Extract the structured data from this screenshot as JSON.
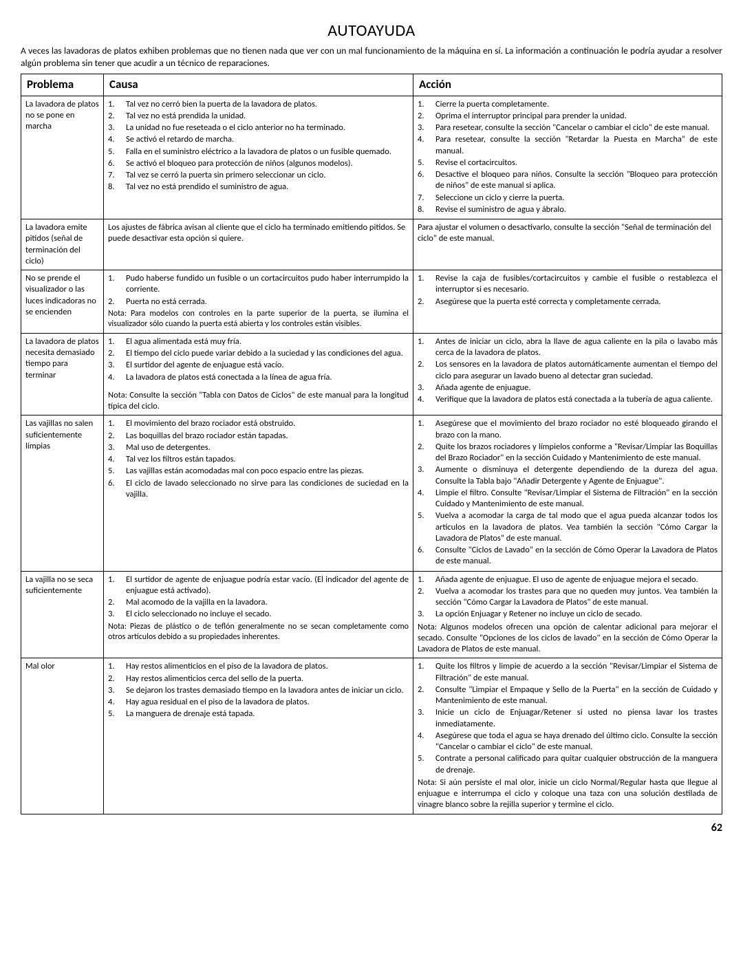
{
  "page_title": "AUTOAYUDA",
  "intro": "A veces las lavadoras de platos exhiben problemas que no tienen nada que ver con un mal funcionamiento de la máquina en sí.  La información a continuación le podría ayudar a resolver algún problema sin tener que acudir a un técnico de reparaciones.",
  "headers": {
    "problema": "Problema",
    "causa": "Causa",
    "accion": "Acción"
  },
  "rows": [
    {
      "problema": "La lavadora de platos no se pone en marcha",
      "causa_items": [
        "Tal vez no cerró bien la puerta de la lavadora de platos.",
        "Tal vez no está prendida la unidad.",
        "La unidad no fue reseteada o el ciclo anterior no ha terminado.",
        "Se activó el retardo de marcha.",
        "Falla en el suministro eléctrico a la lavadora de platos o un fusible quemado.",
        "Se activó el bloqueo para protección de niños (algunos modelos).",
        "Tal vez se cerró la puerta sin primero seleccionar un ciclo.",
        "Tal vez no está prendido el suministro de agua."
      ],
      "accion_items": [
        "Cierre la puerta completamente.",
        "Oprima el interruptor principal para prender la unidad.",
        "Para resetear, consulte la sección \"Cancelar o cambiar el ciclo\" de este manual.",
        "Para resetear, consulte la sección \"Retardar la Puesta en Marcha\" de este manual.",
        "Revise el cortacircuitos.",
        "Desactive el bloqueo para niños. Consulte la sección \"Bloqueo para protección de niños\" de este manual si aplica.",
        "Seleccione un ciclo y cierre la puerta.",
        "Revise el suministro de agua y ábralo."
      ]
    },
    {
      "problema": "La lavadora emite pitidos (señal de terminación del ciclo)",
      "causa_text": "Los ajustes de fábrica avisan al cliente que el ciclo ha terminado emitiendo pitidos. Se puede desactivar esta opción si quiere.",
      "accion_text": "Para ajustar el volumen o desactivarlo, consulte la sección \"Señal de terminación del ciclo\" de este manual."
    },
    {
      "problema": "No se prende el visualizador o las luces indicadoras no se encienden",
      "causa_items": [
        "Pudo haberse fundido un fusible o un cortacircuitos pudo haber interrumpido la corriente.",
        "Puerta no está cerrada."
      ],
      "causa_note": "Nota: Para modelos con controles en la parte superior de la puerta, se ilumina el visualizador sólo cuando la puerta está abierta y los controles están visibles.",
      "accion_items": [
        "Revise la caja de fusibles/cortacircuitos y cambie el fusible o restablezca el interruptor si es necesario.",
        "Asegúrese que la puerta esté correcta y completamente cerrada."
      ]
    },
    {
      "problema": "La lavadora de platos necesita demasiado tiempo para terminar",
      "causa_items": [
        "El agua alimentada está muy fría.",
        "El tiempo del ciclo puede variar debido a la suciedad y las condiciones del agua.",
        "El surtidor del agente de enjuague está vacío.",
        "La lavadora de platos está conectada a la línea de agua fría."
      ],
      "causa_note2": "Nota: Consulte la sección \"Tabla con Datos de Ciclos\" de este manual para la longitud típica del ciclo.",
      "accion_items": [
        "Antes de iniciar un ciclo, abra la llave de agua caliente en la pila o lavabo más cerca de la lavadora de platos.",
        "Los sensores en la lavadora de platos automáticamente aumentan el tiempo del ciclo para asegurar un lavado bueno al detectar gran suciedad.",
        "Añada agente de enjuague.",
        "Verifique que la lavadora de platos está conectada a la tubería de agua caliente."
      ]
    },
    {
      "problema": "Las vajillas no salen suficientemente limpias",
      "causa_items": [
        "El movimiento del brazo rociador está obstruido.",
        "Las boquillas del brazo rociador están tapadas.",
        "Mal uso de detergentes.",
        "Tal vez los filtros están tapados.",
        "Las vajillas están acomodadas mal con poco espacio entre las piezas.",
        "El ciclo de lavado seleccionado no sirve para las condiciones de suciedad en la vajilla."
      ],
      "accion_items": [
        "Asegúrese que el movimiento del brazo rociador no esté bloqueado girando el brazo con la mano.",
        "Quite los brazos rociadores y límpielos conforme a \"Revisar/Limpiar las Boquillas del Brazo Rociador\" en la sección Cuidado y Mantenimiento de este manual.",
        "Aumente o disminuya el detergente dependiendo de la dureza del agua. Consulte la Tabla bajo \"Añadir Detergente y Agente de Enjuague\".",
        "Limpie el filtro. Consulte \"Revisar/Limpiar el Sistema de Filtración\" en la sección Cuidado y Mantenimiento de este manual.",
        "Vuelva a acomodar la carga de tal modo que el agua pueda alcanzar todos los artículos en la lavadora de platos. Vea también la sección \"Cómo Cargar la Lavadora de Platos\" de este manual.",
        "Consulte \"Ciclos de Lavado\" en la sección de Cómo Operar la Lavadora de Platos de este manual."
      ]
    },
    {
      "problema": "La vajilla no se seca suficientemente",
      "causa_items": [
        "El surtidor de agente de enjuague podría estar vacío. (El indicador del agente de enjuague está activado).",
        "Mal acomodo de la vajilla en la lavadora.",
        "El ciclo seleccionado no incluye el secado."
      ],
      "causa_note": "Nota: Piezas de plástico o de teflón generalmente no se secan completamente como otros artículos debido a su propiedades inherentes.",
      "accion_items": [
        "Añada agente de enjuague. El uso de agente de enjuague mejora el secado.",
        "Vuelva a acomodar los trastes para que no queden muy juntos. Vea también la sección \"Cómo Cargar la Lavadora de Platos\" de este manual.",
        "La opción Enjuagar y Retener no incluye un ciclo de secado."
      ],
      "accion_note": "Nota: Algunos modelos ofrecen una opción de calentar adicional para mejorar el secado. Consulte \"Opciones de los ciclos de lavado\" en la sección de Cómo Operar la Lavadora de Platos de este manual."
    },
    {
      "problema": "Mal olor",
      "causa_items": [
        "Hay restos alimenticios en el piso de la lavadora de platos.",
        "Hay restos alimenticios cerca del sello de la puerta.",
        "Se dejaron los trastes demasiado tiempo en la lavadora antes de iniciar un ciclo.",
        "Hay agua residual en el piso de la lavadora de platos.",
        "La manguera de drenaje está tapada."
      ],
      "accion_items": [
        "Quite los filtros y limpie de acuerdo a la sección \"Revisar/Limpiar el Sistema de Filtración\" de este manual.",
        "Consulte \"Limpiar el Empaque y Sello de la Puerta\" en la sección de Cuidado y Mantenimiento de este manual.",
        "Inicie un ciclo de Enjuagar/Retener si usted no piensa lavar los trastes inmediatamente.",
        "Asegúrese que toda el agua se haya drenado del último ciclo. Consulte la sección \"Cancelar o cambiar el ciclo\" de este manual.",
        "Contrate a personal calificado para quitar cualquier obstrucción de la manguera de drenaje."
      ],
      "accion_note": "Nota: Si aún persiste el mal olor, inicie un ciclo Normal/Regular hasta que llegue al enjuague e interrumpa el ciclo y coloque una taza con una solución destilada de vinagre blanco sobre la rejilla superior y termine el ciclo."
    }
  ],
  "page_number": "62"
}
